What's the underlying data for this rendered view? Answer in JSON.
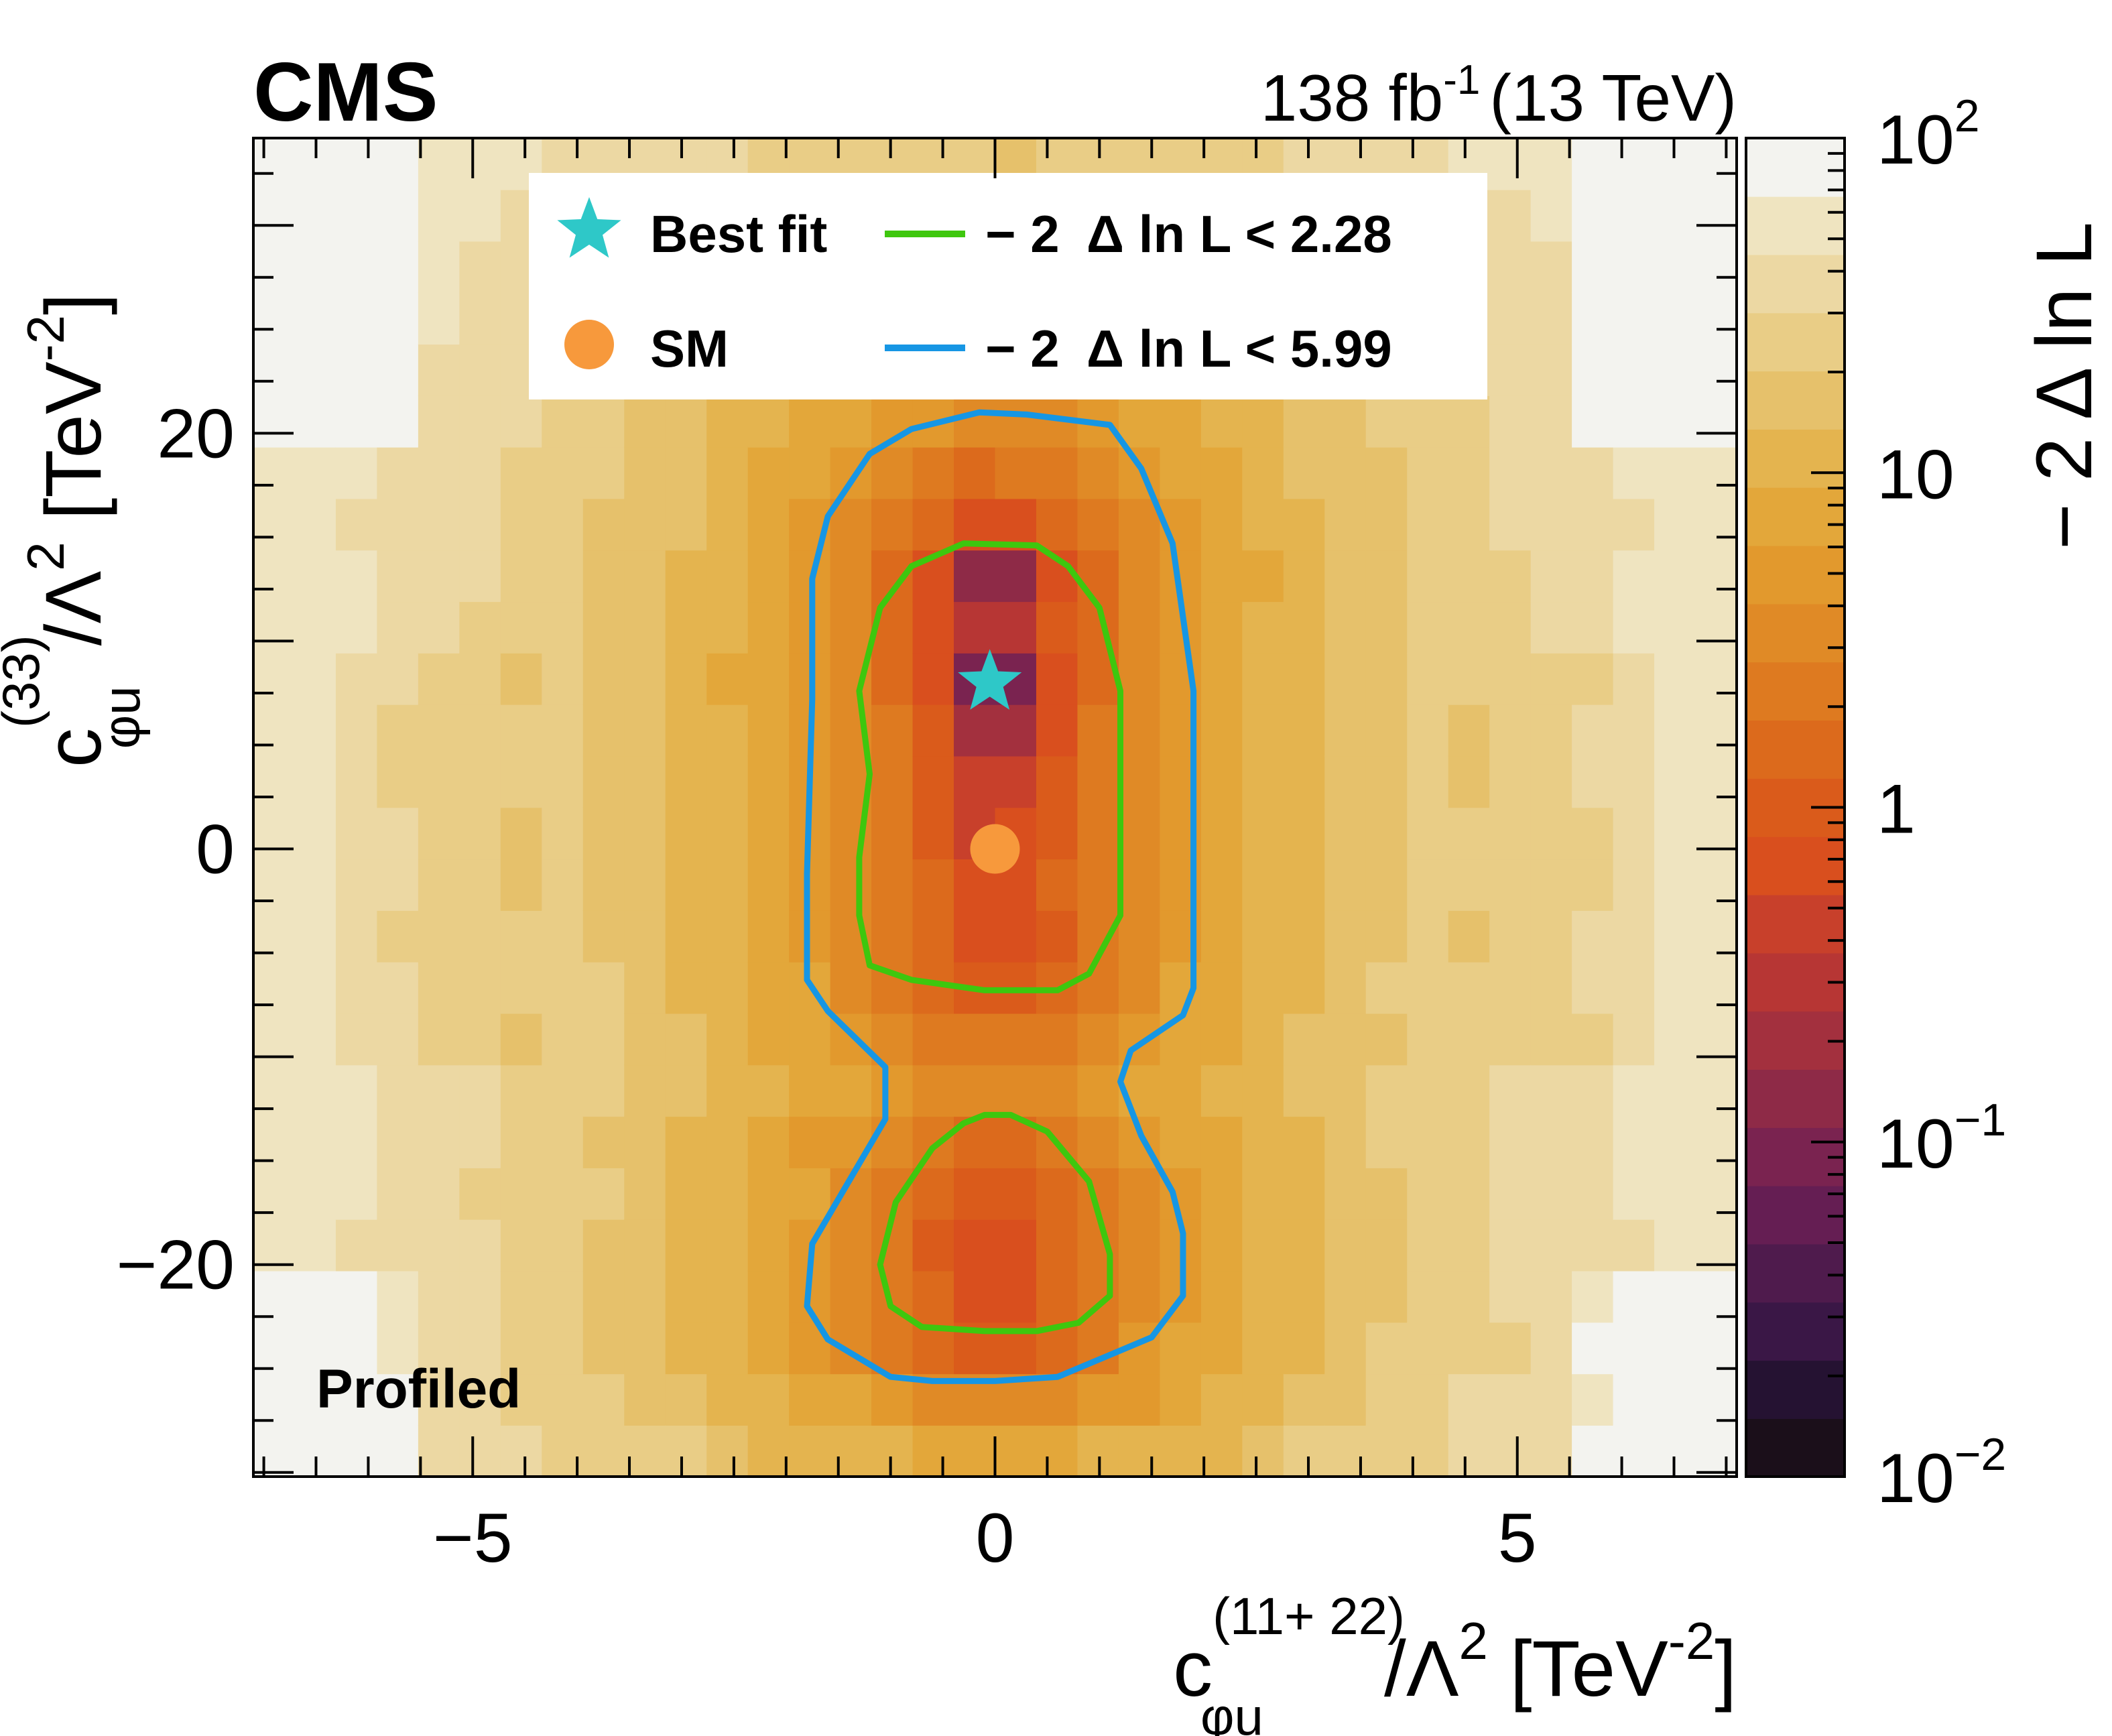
{
  "chart_data": {
    "type": "heatmap",
    "experiment": "CMS",
    "luminosity_label": "138 fb",
    "luminosity_exp": "-1",
    "energy_label": "(13 TeV)",
    "annotation": "Profiled",
    "xlabel": {
      "base": "c",
      "sub": "φu",
      "sup": "(11+ 22)",
      "rest": "/Λ",
      "rest_sup": "2",
      "unit": " [TeV",
      "unit_sup": "-2",
      "unit_end": "]"
    },
    "ylabel": {
      "base": "c",
      "sub": "φu",
      "sup": "(33)",
      "rest": "/Λ",
      "rest_sup": "2",
      "unit": " [TeV",
      "unit_sup": "-2",
      "unit_end": "]"
    },
    "zlabel": "− 2 Δ ln L",
    "xlim": [
      -7.1,
      7.1
    ],
    "ylim": [
      -30.2,
      34.2
    ],
    "zlim": [
      0.01,
      100
    ],
    "x_major_ticks": [
      -5,
      0,
      5
    ],
    "x_tick_labels": [
      "−5",
      "0",
      "5"
    ],
    "y_major_ticks": [
      -20,
      0,
      20
    ],
    "y_tick_labels": [
      "−20",
      "0",
      "20"
    ],
    "z_tick_labels": [
      {
        "base": "10",
        "exp": "2",
        "value": 100
      },
      {
        "base": "10",
        "exp": "",
        "value": 10
      },
      {
        "base": "1",
        "exp": "",
        "value": 1
      },
      {
        "base": "10",
        "exp": "−1",
        "value": 0.1
      },
      {
        "base": "10",
        "exp": "−2",
        "value": 0.01
      }
    ],
    "best_fit": {
      "x": -0.05,
      "y": 8.0
    },
    "sm_point": {
      "x": 0.0,
      "y": 0.0
    },
    "legend": {
      "best_fit_label": "Best fit",
      "sm_label": "SM",
      "contour1_label": "− 2  Δ ln L < 2.28",
      "contour2_label": "− 2  Δ ln L < 5.99"
    },
    "colors": {
      "contour_68": "#3ec70e",
      "contour_95": "#1696e4",
      "best_fit": "#2ec8c8",
      "sm": "#f7993c",
      "palette": [
        "#1b0f1a",
        "#251232",
        "#3a1746",
        "#4f1b4d",
        "#651e53",
        "#7a2350",
        "#8e2a47",
        "#a3303e",
        "#b73634",
        "#c8402b",
        "#d94f1e",
        "#da5b1b",
        "#dc6a1c",
        "#de7a20",
        "#e08a26",
        "#e2992d",
        "#e3a73a",
        "#e4b44f",
        "#e6c16b",
        "#e9cd86",
        "#ecd8a3",
        "#efe4c0",
        "#f3f3ef"
      ]
    },
    "contour_68_upper": [
      [
        -0.3,
        14.7
      ],
      [
        0.4,
        14.6
      ],
      [
        0.7,
        13.6
      ],
      [
        1.0,
        11.6
      ],
      [
        1.2,
        7.6
      ],
      [
        1.2,
        3.6
      ],
      [
        1.2,
        -0.4
      ],
      [
        1.2,
        -3.2
      ],
      [
        0.9,
        -6.0
      ],
      [
        0.6,
        -6.8
      ],
      [
        -0.1,
        -6.8
      ],
      [
        -0.8,
        -6.3
      ],
      [
        -1.2,
        -5.6
      ],
      [
        -1.3,
        -3.2
      ],
      [
        -1.3,
        -0.4
      ],
      [
        -1.2,
        3.6
      ],
      [
        -1.3,
        7.6
      ],
      [
        -1.1,
        11.6
      ],
      [
        -0.8,
        13.6
      ],
      [
        -0.3,
        14.7
      ]
    ],
    "contour_68_lower": [
      [
        -0.1,
        -12.8
      ],
      [
        0.15,
        -12.8
      ],
      [
        0.5,
        -13.6
      ],
      [
        0.9,
        -16.0
      ],
      [
        1.1,
        -19.5
      ],
      [
        1.1,
        -21.5
      ],
      [
        0.8,
        -22.8
      ],
      [
        0.4,
        -23.2
      ],
      [
        -0.1,
        -23.2
      ],
      [
        -0.7,
        -23.0
      ],
      [
        -1.0,
        -22.0
      ],
      [
        -1.1,
        -20.0
      ],
      [
        -0.95,
        -17.0
      ],
      [
        -0.6,
        -14.4
      ],
      [
        -0.3,
        -13.2
      ],
      [
        -0.1,
        -12.8
      ]
    ],
    "contour_95": [
      [
        -0.15,
        21.0
      ],
      [
        0.3,
        20.9
      ],
      [
        1.1,
        20.4
      ],
      [
        1.4,
        18.3
      ],
      [
        1.7,
        14.7
      ],
      [
        1.9,
        7.6
      ],
      [
        1.9,
        0.0
      ],
      [
        1.9,
        -6.7
      ],
      [
        1.8,
        -8.0
      ],
      [
        1.3,
        -9.7
      ],
      [
        1.2,
        -11.2
      ],
      [
        1.4,
        -13.8
      ],
      [
        1.7,
        -16.5
      ],
      [
        1.8,
        -18.5
      ],
      [
        1.8,
        -21.5
      ],
      [
        1.5,
        -23.5
      ],
      [
        0.6,
        -25.4
      ],
      [
        0.0,
        -25.6
      ],
      [
        -0.6,
        -25.6
      ],
      [
        -1.0,
        -25.4
      ],
      [
        -1.6,
        -23.6
      ],
      [
        -1.8,
        -22.0
      ],
      [
        -1.75,
        -19.0
      ],
      [
        -1.4,
        -16.0
      ],
      [
        -1.05,
        -13.0
      ],
      [
        -1.05,
        -10.5
      ],
      [
        -1.6,
        -7.8
      ],
      [
        -1.8,
        -6.3
      ],
      [
        -1.8,
        -1.2
      ],
      [
        -1.75,
        7.2
      ],
      [
        -1.75,
        13.0
      ],
      [
        -1.6,
        16.0
      ],
      [
        -1.2,
        19.0
      ],
      [
        -0.8,
        20.2
      ],
      [
        -0.15,
        21.0
      ]
    ]
  }
}
